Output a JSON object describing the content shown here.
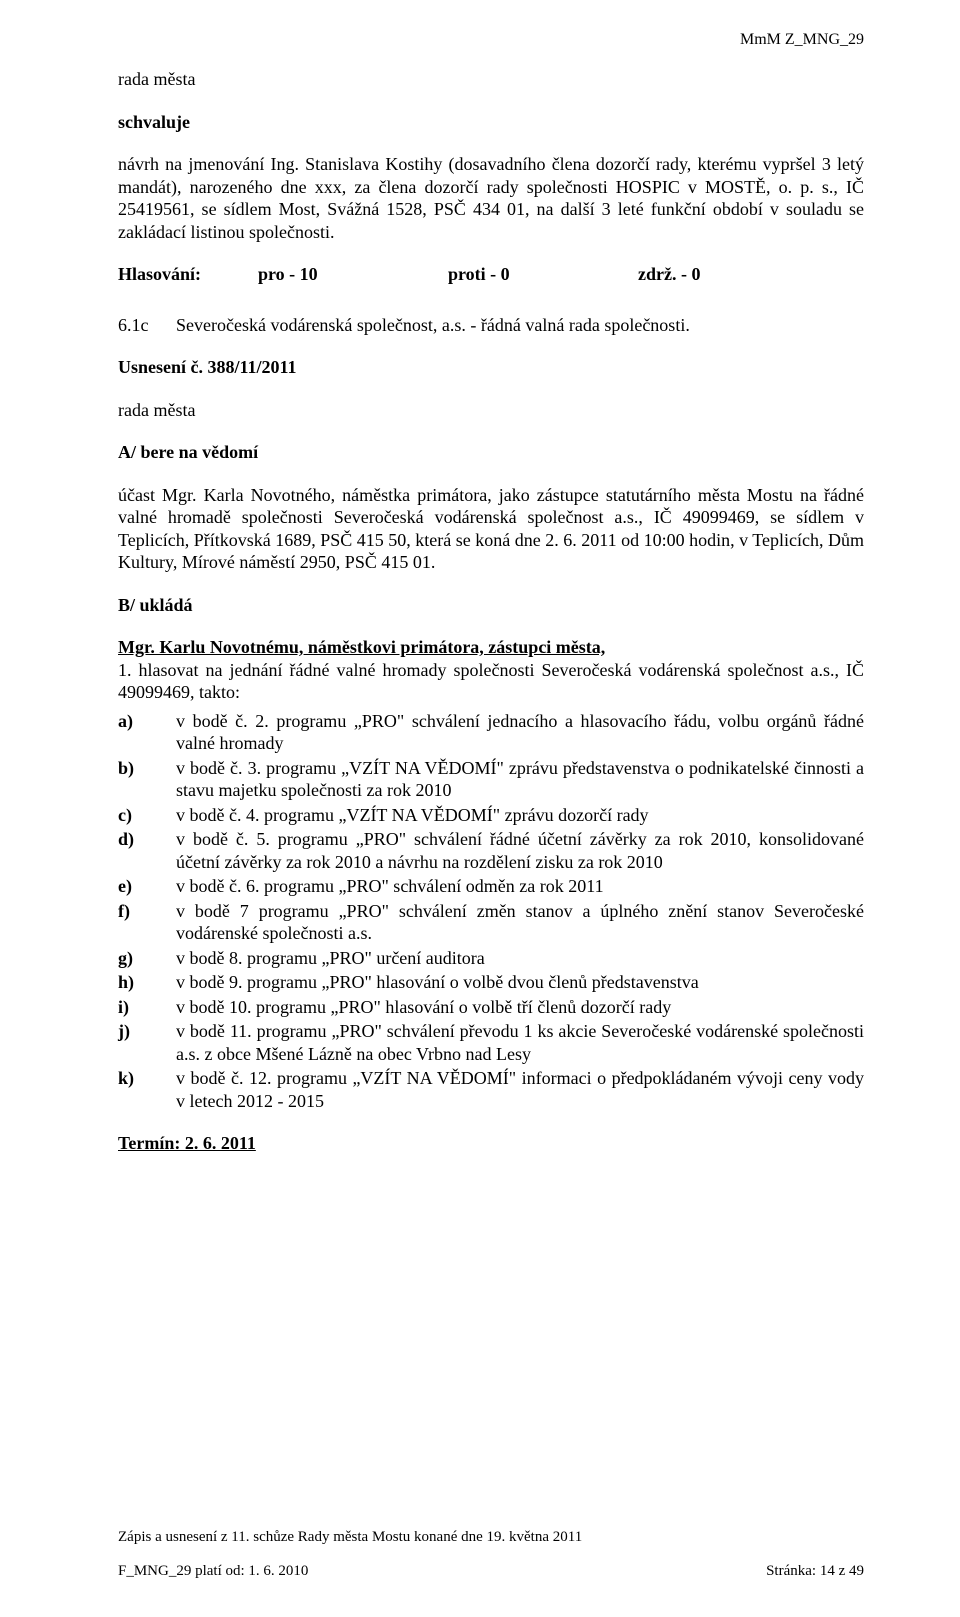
{
  "header": {
    "code": "MmM Z_MNG_29"
  },
  "intro": {
    "line1": "rada města",
    "line2": "schvaluje",
    "para": "návrh na jmenování Ing. Stanislava Kostihy (dosavadního člena dozorčí rady, kterému vypršel 3 letý mandát), narozeného dne xxx, za člena dozorčí rady společnosti HOSPIC v MOSTĚ, o. p. s., IČ 25419561, se sídlem Most, Svážná 1528, PSČ 434 01, na další 3 leté funkční období v souladu se zakládací listinou společnosti."
  },
  "voting": {
    "label": "Hlasování:",
    "pro": "pro - 10",
    "proti": "proti - 0",
    "zdrz": "zdrž. - 0"
  },
  "item": {
    "num": "6.1c",
    "text": "Severočeská vodárenská společnost, a.s. - řádná valná rada společnosti."
  },
  "usneseni": {
    "label": "Usnesení č. 388/11/2011",
    "rada": "rada města",
    "sectionA_title": "A/  bere na vědomí",
    "sectionA_para": "účast Mgr. Karla Novotného, náměstka primátora, jako zástupce statutárního města Mostu na řádné valné hromadě společnosti Severočeská vodárenská společnost a.s., IČ 49099469, se sídlem v Teplicích, Přítkovská 1689, PSČ 415 50, která se koná dne 2. 6. 2011 od 10:00 hodin, v  Teplicích, Dům Kultury, Mírové náměstí 2950, PSČ 415 01.",
    "sectionB_title": "B/  ukládá",
    "sectionB_person": "Mgr. Karlu Novotnému, náměstkovi primátora, zástupci města,",
    "sectionB_intro": "1. hlasovat na jednání řádné valné hromady společnosti Severočeská vodárenská společnost a.s., IČ 49099469, takto:",
    "list": [
      {
        "marker": "a)",
        "text": "v bodě č. 2. programu „PRO\" schválení jednacího a hlasovacího řádu, volbu orgánů řádné valné hromady"
      },
      {
        "marker": "b)",
        "text": "v bodě č. 3. programu „VZÍT NA VĚDOMÍ\" zprávu představenstva o podnikatelské činnosti a stavu majetku společnosti za rok 2010"
      },
      {
        "marker": "c)",
        "text": "v bodě č. 4. programu „VZÍT NA VĚDOMÍ\" zprávu dozorčí rady"
      },
      {
        "marker": "d)",
        "text": "v bodě č. 5. programu „PRO\" schválení řádné účetní závěrky za rok 2010, konsolidované účetní závěrky za rok 2010 a návrhu na rozdělení zisku za rok 2010"
      },
      {
        "marker": "e)",
        "text": "v bodě č. 6. programu „PRO\" schválení odměn za rok 2011"
      },
      {
        "marker": "f)",
        "text": "v bodě 7 programu „PRO\" schválení změn stanov a úplného znění stanov Severočeské vodárenské společnosti a.s."
      },
      {
        "marker": "g)",
        "text": "v bodě 8. programu „PRO\" určení auditora"
      },
      {
        "marker": "h)",
        "text": "v bodě 9. programu „PRO\" hlasování o volbě dvou členů představenstva"
      },
      {
        "marker": "i)",
        "text": "v bodě 10. programu „PRO\" hlasování o volbě tří členů dozorčí rady"
      },
      {
        "marker": "j)",
        "text": "v bodě 11. programu „PRO\" schválení převodu 1 ks akcie Severočeské vodárenské společnosti a.s. z obce Mšené Lázně na obec Vrbno nad Lesy"
      },
      {
        "marker": "k)",
        "text": "v bodě č. 12. programu „VZÍT NA VĚDOMÍ\" informaci o předpokládaném vývoji ceny vody v letech 2012 - 2015"
      }
    ],
    "termin": "Termín: 2. 6. 2011"
  },
  "footer": {
    "line1": "Zápis a usnesení z 11. schůze Rady města Mostu konané dne 19. května 2011",
    "left": "F_MNG_29 platí od: 1. 6. 2010",
    "right": "Stránka: 14 z 49"
  }
}
